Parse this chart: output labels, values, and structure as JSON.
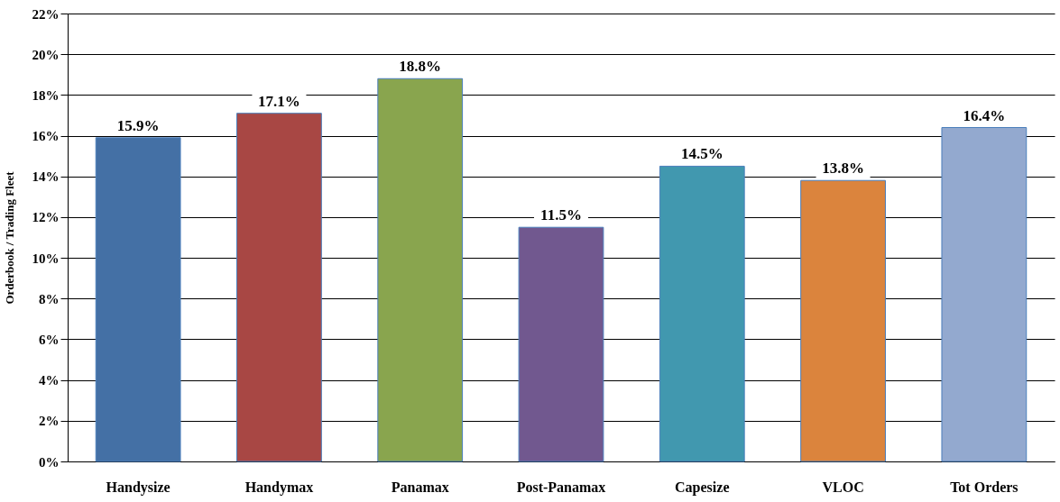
{
  "chart_data": {
    "type": "bar",
    "ylabel": "Orderbook / Trading Fleet",
    "categories": [
      "Handysize",
      "Handymax",
      "Panamax",
      "Post-Panamax",
      "Capesize",
      "VLOC",
      "Tot Orders"
    ],
    "values": [
      15.9,
      17.1,
      18.8,
      11.5,
      14.5,
      13.8,
      16.4
    ],
    "colors": [
      "#4470a5",
      "#a84744",
      "#89a54e",
      "#71588f",
      "#4198af",
      "#db843d",
      "#93a9cf"
    ],
    "value_labels": [
      "15.9%",
      "17.1%",
      "18.8%",
      "11.5%",
      "14.5%",
      "13.8%",
      "16.4%"
    ],
    "ylim": [
      0,
      22
    ],
    "yticks": [
      {
        "value": 0,
        "label": "0%"
      },
      {
        "value": 2,
        "label": "2%"
      },
      {
        "value": 4,
        "label": "4%"
      },
      {
        "value": 6,
        "label": "6%"
      },
      {
        "value": 8,
        "label": "8%"
      },
      {
        "value": 10,
        "label": "10%"
      },
      {
        "value": 12,
        "label": "12%"
      },
      {
        "value": 14,
        "label": "14%"
      },
      {
        "value": 16,
        "label": "16%"
      },
      {
        "value": 18,
        "label": "18%"
      },
      {
        "value": 20,
        "label": "20%"
      },
      {
        "value": 22,
        "label": "22%"
      }
    ],
    "grid": "y"
  }
}
